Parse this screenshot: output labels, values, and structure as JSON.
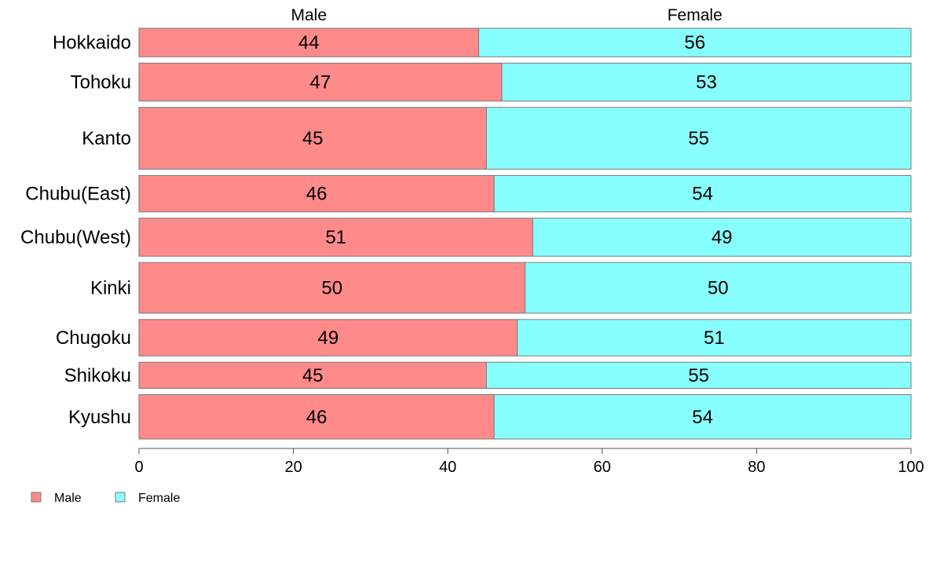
{
  "chart_data": {
    "type": "bar",
    "orientation": "horizontal",
    "stacked": true,
    "categories": [
      "Hokkaido",
      "Tohoku",
      "Kanto",
      "Chubu(East)",
      "Chubu(West)",
      "Kinki",
      "Chugoku",
      "Shikoku",
      "Kyushu"
    ],
    "series": [
      {
        "name": "Male",
        "values": [
          44,
          47,
          45,
          46,
          51,
          50,
          49,
          45,
          46
        ],
        "color": "#ff8a8a"
      },
      {
        "name": "Female",
        "values": [
          56,
          53,
          55,
          54,
          49,
          50,
          51,
          55,
          54
        ],
        "color": "#88ffff"
      }
    ],
    "column_headers": [
      "Male",
      "Female"
    ],
    "xlim": [
      0,
      100
    ],
    "xticks": [
      0,
      20,
      40,
      60,
      80,
      100
    ],
    "grid": false,
    "legend": "bottom-left"
  }
}
